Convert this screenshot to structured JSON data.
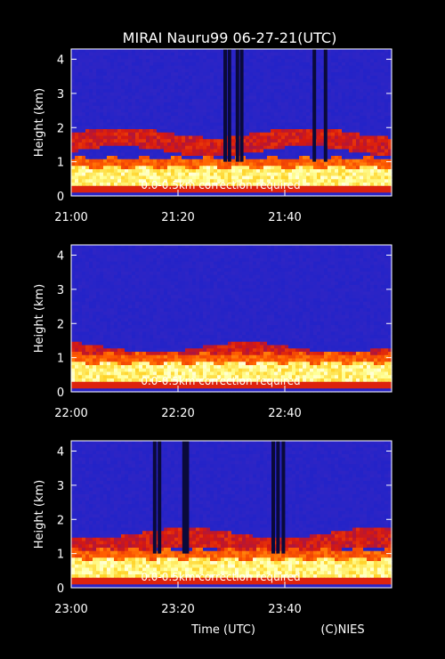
{
  "header": {
    "title": "MIRAI Nauru99 06-27-21(UTC)"
  },
  "footer": {
    "xlabel": "Time (UTC)",
    "credit": "(C)NIES"
  },
  "chart_data": [
    {
      "type": "heatmap",
      "ylabel": "Height (km)",
      "yticks": [
        "0",
        "1",
        "2",
        "3",
        "4"
      ],
      "ylim": [
        0,
        4.3
      ],
      "xticks": [
        "21:00",
        "21:20",
        "21:40"
      ],
      "annotation": "0.0-0.5km correction required",
      "boundary_layer_top_km": 0.85,
      "upper_layer_top_km": 1.85,
      "rain_columns_min": [
        28.5,
        29.3,
        30.8,
        31.6,
        45.2,
        47.3
      ]
    },
    {
      "type": "heatmap",
      "ylabel": "Height (km)",
      "yticks": [
        "0",
        "1",
        "2",
        "3",
        "4"
      ],
      "ylim": [
        0,
        4.3
      ],
      "xticks": [
        "22:00",
        "22:20",
        "22:40"
      ],
      "annotation": "0.0-0.5km correction required",
      "boundary_layer_top_km": 0.85,
      "upper_layer_top_km": 1.3,
      "rain_columns_min": []
    },
    {
      "type": "heatmap",
      "ylabel": "Height (km)",
      "yticks": [
        "0",
        "1",
        "2",
        "3",
        "4"
      ],
      "ylim": [
        0,
        4.3
      ],
      "xticks": [
        "23:00",
        "23:20",
        "23:40"
      ],
      "annotation": "0.0-0.5km correction required",
      "boundary_layer_top_km": 0.85,
      "upper_layer_top_km": 1.6,
      "rain_columns_min": [
        15.3,
        16.2,
        20.8,
        21.4,
        37.5,
        38.4,
        39.4
      ]
    }
  ]
}
